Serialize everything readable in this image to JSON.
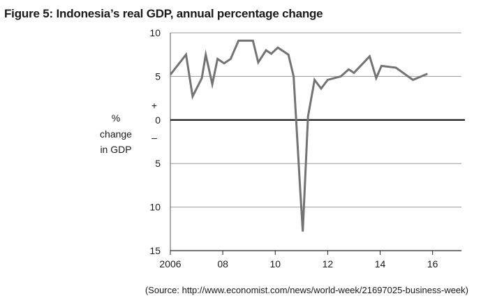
{
  "chart_data": {
    "type": "line",
    "title": "Figure 5: Indonesia’s real GDP, annual percentage change",
    "ylabel_lines": [
      "%",
      "change",
      "in GDP"
    ],
    "source": "(Source: http://www.economist.com/news/world-week/21697025-business-week)",
    "x_ticks": [
      {
        "value": 2006,
        "label": "2006"
      },
      {
        "value": 2008,
        "label": "08"
      },
      {
        "value": 2010,
        "label": "10"
      },
      {
        "value": 2012,
        "label": "12"
      },
      {
        "value": 2014,
        "label": "14"
      },
      {
        "value": 2016,
        "label": "16"
      }
    ],
    "y_ticks": [
      {
        "value": 10,
        "label": "10"
      },
      {
        "value": 5,
        "label": "5"
      },
      {
        "value": 0,
        "label": "0"
      },
      {
        "value": -5,
        "label": "5"
      },
      {
        "value": -10,
        "label": "10"
      },
      {
        "value": -15,
        "label": "15"
      }
    ],
    "sign_labels": {
      "plus": "+",
      "minus": "–"
    },
    "xlim": [
      2006,
      2017.1
    ],
    "ylim": [
      -15,
      10
    ],
    "grid": true,
    "line_color": "#737373",
    "series": [
      {
        "x": [
          2006.0,
          2006.6,
          2006.85,
          2007.2,
          2007.35,
          2007.6,
          2007.8,
          2008.05,
          2008.3,
          2008.6,
          2009.15,
          2009.35,
          2009.65,
          2009.85,
          2010.1,
          2010.5,
          2010.7,
          2010.95,
          2011.05,
          2011.25,
          2011.5,
          2011.75,
          2012.0,
          2012.5,
          2012.8,
          2013.0,
          2013.6,
          2013.85,
          2014.05,
          2014.6,
          2015.25,
          2015.8
        ],
        "y": [
          5.2,
          7.5,
          2.7,
          4.8,
          7.5,
          4.1,
          7.0,
          6.5,
          7.0,
          9.1,
          9.1,
          6.6,
          8.0,
          7.6,
          8.3,
          7.5,
          5.0,
          -8.0,
          -12.8,
          0.4,
          4.6,
          3.6,
          4.6,
          5.0,
          5.8,
          5.4,
          7.3,
          4.8,
          6.2,
          6.0,
          4.6,
          5.3
        ]
      }
    ]
  }
}
